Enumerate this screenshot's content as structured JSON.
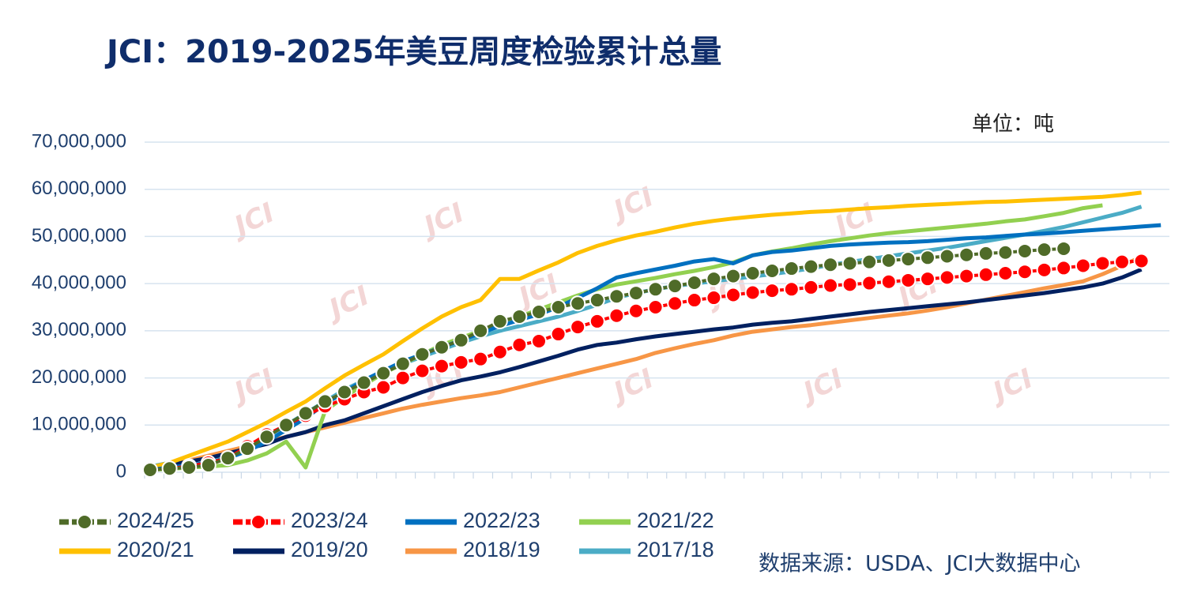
{
  "chart_data": {
    "type": "line",
    "title": "JCI：2019-2025年美豆周度检验累计总量",
    "unit_note": "单位：吨",
    "source": "数据来源：USDA、JCI大数据中心",
    "watermark": "JCI",
    "grid": true,
    "categories": [
      null,
      null,
      null,
      null,
      null,
      null,
      null,
      null,
      null,
      null,
      null,
      null,
      null,
      null,
      null,
      null,
      null,
      null,
      null,
      null,
      null,
      null,
      null,
      null,
      null,
      null,
      null,
      null,
      null,
      null,
      null,
      null,
      null,
      null,
      null,
      null,
      null,
      null,
      null,
      null,
      null,
      null,
      null,
      null,
      null,
      null,
      null,
      null,
      null,
      null,
      null,
      null,
      null
    ],
    "ylim": [
      0,
      70000000
    ],
    "yticks": [
      0,
      {
        "value": 10000000,
        "label": "10,000,000"
      },
      {
        "value": 20000000,
        "label": "20,000,000"
      },
      {
        "value": 30000000,
        "label": "30,000,000"
      },
      {
        "value": 40000000,
        "label": "40,000,000"
      },
      {
        "value": 50000000,
        "label": "50,000,000"
      },
      {
        "value": 60000000,
        "label": "60,000,000"
      },
      {
        "value": 70000000,
        "label": "70,000,000"
      }
    ],
    "series": [
      {
        "name": "2024/25",
        "color": "#4f6b28",
        "marker": "circle",
        "values": [
          500000,
          800000,
          1000000,
          1500000,
          3000000,
          5000000,
          7500000,
          10000000,
          12500000,
          15000000,
          17000000,
          19000000,
          21000000,
          23000000,
          25000000,
          26500000,
          28000000,
          30000000,
          32000000,
          33000000,
          34000000,
          35000000,
          35800000,
          36500000,
          37300000,
          38000000,
          38800000,
          39500000,
          40200000,
          41000000,
          41600000,
          42200000,
          42700000,
          43200000,
          43600000,
          44000000,
          44300000,
          44600000,
          44900000,
          45200000,
          45500000,
          45800000,
          46100000,
          46400000,
          46600000,
          46900000,
          47200000,
          47400000,
          null,
          null,
          null,
          null,
          null
        ]
      },
      {
        "name": "2023/24",
        "color": "#ff0000",
        "marker": "circle",
        "values": [
          500000,
          800000,
          1300000,
          2000000,
          3000000,
          5500000,
          8000000,
          10000000,
          12000000,
          14000000,
          15500000,
          17000000,
          18000000,
          20000000,
          21500000,
          22500000,
          23300000,
          24000000,
          25500000,
          27000000,
          27800000,
          29300000,
          30800000,
          32000000,
          33200000,
          34200000,
          35000000,
          35800000,
          36500000,
          37000000,
          37600000,
          38100000,
          38500000,
          38800000,
          39200000,
          39600000,
          39800000,
          40100000,
          40400000,
          40700000,
          41000000,
          41300000,
          41600000,
          41900000,
          42200000,
          42500000,
          42900000,
          43300000,
          43800000,
          44300000,
          44600000,
          44800000,
          null
        ]
      },
      {
        "name": "2022/23",
        "color": "#0070c0",
        "values": [
          500000,
          1000000,
          1500000,
          2000000,
          3000000,
          4500000,
          6500000,
          9000000,
          11500000,
          14500000,
          17000000,
          19500000,
          21500000,
          23500000,
          25000000,
          26500000,
          28000000,
          29500000,
          31000000,
          32300000,
          33500000,
          35000000,
          37000000,
          39000000,
          41300000,
          42200000,
          43000000,
          43800000,
          44700000,
          45200000,
          44300000,
          46000000,
          46700000,
          47000000,
          47500000,
          48000000,
          48300000,
          48500000,
          48700000,
          48800000,
          49000000,
          49300000,
          49600000,
          49800000,
          50100000,
          50400000,
          50600000,
          50900000,
          51200000,
          51500000,
          51800000,
          52100000,
          52400000
        ]
      },
      {
        "name": "2021/22",
        "color": "#92d050",
        "values": [
          500000,
          700000,
          1000000,
          1200000,
          1500000,
          2500000,
          4000000,
          6500000,
          1000000,
          13000000,
          16000000,
          18500000,
          21000000,
          23000000,
          25000000,
          27000000,
          28500000,
          30000000,
          31500000,
          33000000,
          34500000,
          36000000,
          37500000,
          38800000,
          39800000,
          40500000,
          41200000,
          42000000,
          42700000,
          43500000,
          44500000,
          46000000,
          46800000,
          47500000,
          48300000,
          49000000,
          49600000,
          50200000,
          50700000,
          51100000,
          51500000,
          51900000,
          52300000,
          52700000,
          53200000,
          53600000,
          54300000,
          55000000,
          56000000,
          56600000,
          null,
          null,
          null
        ]
      },
      {
        "name": "2020/21",
        "color": "#ffc000",
        "values": [
          1000000,
          2000000,
          3500000,
          5000000,
          6500000,
          8500000,
          10500000,
          12800000,
          15000000,
          17800000,
          20500000,
          22800000,
          25000000,
          27800000,
          30500000,
          33000000,
          35000000,
          36500000,
          41000000,
          41000000,
          42800000,
          44500000,
          46500000,
          48000000,
          49200000,
          50200000,
          51000000,
          51900000,
          52700000,
          53300000,
          53800000,
          54200000,
          54600000,
          54900000,
          55200000,
          55400000,
          55700000,
          56000000,
          56200000,
          56500000,
          56700000,
          56900000,
          57100000,
          57300000,
          57400000,
          57600000,
          57800000,
          58000000,
          58200000,
          58400000,
          58800000,
          59300000,
          null
        ]
      },
      {
        "name": "2019/20",
        "color": "#002060",
        "values": [
          500000,
          1500000,
          2300000,
          3000000,
          4000000,
          5000000,
          6000000,
          7500000,
          8500000,
          10000000,
          11000000,
          12500000,
          14000000,
          15500000,
          17000000,
          18300000,
          19500000,
          20300000,
          21200000,
          22300000,
          23500000,
          24700000,
          26000000,
          27000000,
          27500000,
          28200000,
          28800000,
          29300000,
          29800000,
          30300000,
          30700000,
          31300000,
          31700000,
          32000000,
          32500000,
          33000000,
          33500000,
          34000000,
          34400000,
          34800000,
          35200000,
          35600000,
          36000000,
          36500000,
          37000000,
          37500000,
          38000000,
          38600000,
          39200000,
          40000000,
          41300000,
          43000000,
          null
        ]
      },
      {
        "name": "2018/19",
        "color": "#f79646",
        "values": [
          500000,
          1500000,
          2500000,
          3500000,
          4500000,
          5500000,
          6500000,
          7500000,
          8500000,
          9500000,
          10500000,
          11500000,
          12500000,
          13500000,
          14300000,
          15000000,
          15700000,
          16300000,
          17000000,
          18000000,
          19000000,
          20000000,
          21000000,
          22000000,
          23000000,
          24000000,
          25300000,
          26300000,
          27200000,
          28000000,
          29000000,
          29800000,
          30300000,
          30800000,
          31200000,
          31700000,
          32200000,
          32700000,
          33200000,
          33700000,
          34300000,
          35000000,
          35800000,
          36600000,
          37400000,
          38200000,
          39000000,
          39700000,
          40500000,
          42000000,
          43800000,
          45700000,
          null
        ]
      },
      {
        "name": "2017/18",
        "color": "#4bacc6",
        "values": [
          1200000,
          2000000,
          2500000,
          3000000,
          3500000,
          5000000,
          7500000,
          10000000,
          12500000,
          15000000,
          17500000,
          19500000,
          21500000,
          23000000,
          24500000,
          26000000,
          27500000,
          28800000,
          30000000,
          31000000,
          32000000,
          33000000,
          34200000,
          35500000,
          37000000,
          38000000,
          38800000,
          39500000,
          40000000,
          40500000,
          41000000,
          41500000,
          42000000,
          42600000,
          43200000,
          44000000,
          44600000,
          45200000,
          45800000,
          46400000,
          47000000,
          47600000,
          48300000,
          49000000,
          49700000,
          50400000,
          51200000,
          52000000,
          53000000,
          54000000,
          55000000,
          56300000,
          null
        ]
      }
    ]
  }
}
